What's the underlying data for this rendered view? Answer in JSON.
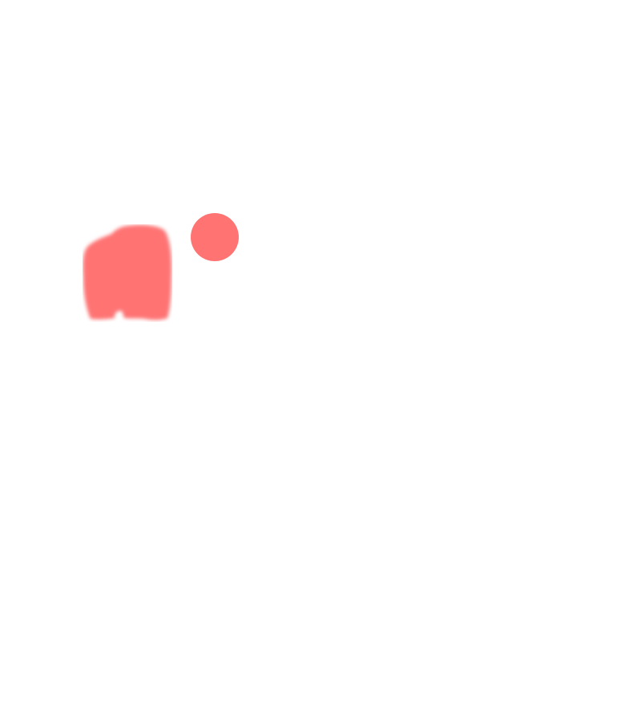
{
  "canvas": {
    "background": "#ffffff"
  },
  "shapes": {
    "blob": {
      "color": "#ff7373",
      "style": "soft-edged"
    },
    "dot": {
      "color": "#ff7373"
    }
  }
}
